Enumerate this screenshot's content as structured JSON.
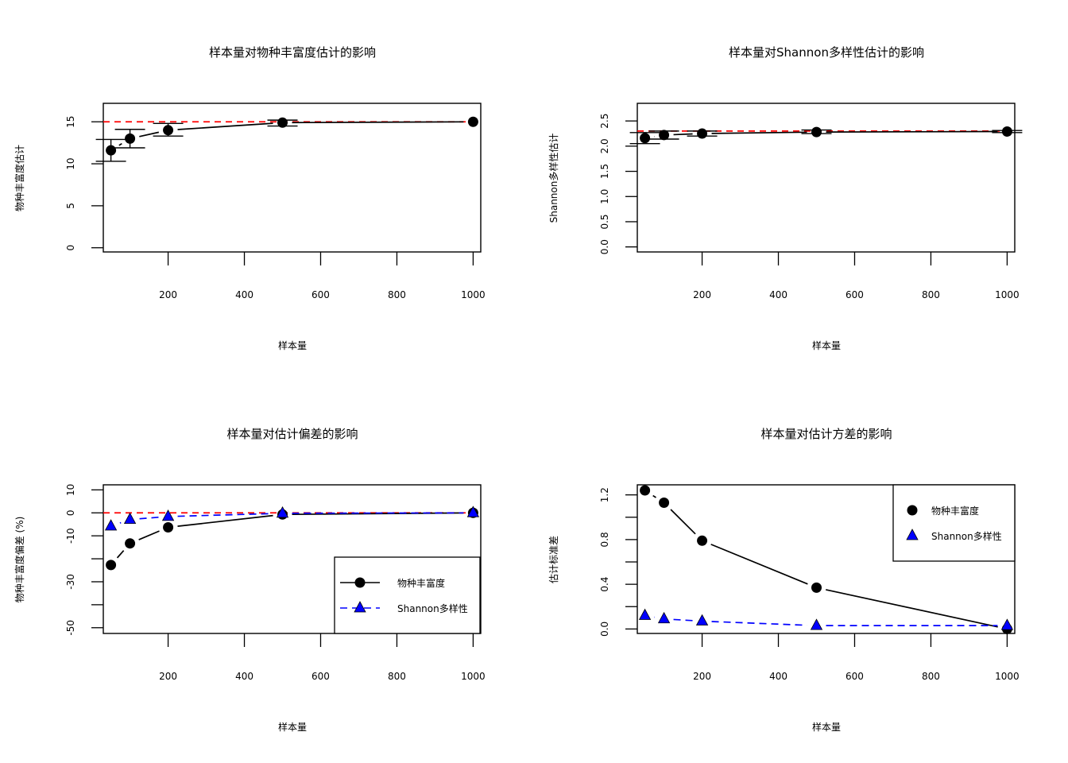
{
  "colors": {
    "main_line": "#000000",
    "shannon": "#0000FF",
    "reference": "#FF0000",
    "axis": "#000000"
  },
  "chart_data": [
    {
      "type": "line",
      "title": "样本量对物种丰富度估计的影响",
      "xlabel": "样本量",
      "ylabel": "物种丰富度估计",
      "xlim": [
        30,
        1020
      ],
      "ylim": [
        -0.5,
        17.2
      ],
      "xticks": [
        200,
        400,
        600,
        800,
        1000
      ],
      "xtick_labels": [
        "200",
        "400",
        "600",
        "800",
        "1000"
      ],
      "yticks": [
        0,
        5,
        10,
        15
      ],
      "ytick_labels": [
        "0",
        "5",
        "10",
        "15"
      ],
      "reference_line": 15,
      "series": [
        {
          "name": "物种丰富度",
          "x": [
            50,
            100,
            200,
            500,
            1000
          ],
          "y": [
            11.6,
            13.0,
            14.0,
            14.9,
            15.0
          ],
          "error_low": [
            10.3,
            11.9,
            13.3,
            14.5,
            15.0
          ],
          "error_high": [
            12.9,
            14.1,
            14.8,
            15.2,
            15.0
          ]
        }
      ]
    },
    {
      "type": "line",
      "title": "样本量对Shannon多样性估计的影响",
      "xlabel": "样本量",
      "ylabel": "Shannon多样性估计",
      "xlim": [
        30,
        1020
      ],
      "ylim": [
        -0.1,
        2.85
      ],
      "xticks": [
        200,
        400,
        600,
        800,
        1000
      ],
      "xtick_labels": [
        "200",
        "400",
        "600",
        "800",
        "1000"
      ],
      "yticks": [
        0.0,
        0.5,
        1.0,
        1.5,
        2.0,
        2.5
      ],
      "ytick_labels": [
        "0.0",
        "0.5",
        "1.0",
        "1.5",
        "2.0",
        "2.5"
      ],
      "reference_line": 2.3,
      "series": [
        {
          "name": "Shannon多样性",
          "x": [
            50,
            100,
            200,
            500,
            1000
          ],
          "y": [
            2.16,
            2.22,
            2.25,
            2.28,
            2.29
          ],
          "error_low": [
            2.05,
            2.14,
            2.2,
            2.25,
            2.27
          ],
          "error_high": [
            2.27,
            2.3,
            2.3,
            2.32,
            2.31
          ]
        }
      ]
    },
    {
      "type": "line",
      "title": "样本量对估计偏差的影响",
      "xlabel": "样本量",
      "ylabel": "物种丰富度偏差 (%)",
      "xlim": [
        30,
        1020
      ],
      "ylim": [
        -52.5,
        12.2
      ],
      "xticks": [
        200,
        400,
        600,
        800,
        1000
      ],
      "xtick_labels": [
        "200",
        "400",
        "600",
        "800",
        "1000"
      ],
      "yticks": [
        10,
        0,
        -10,
        -20,
        -30,
        -40,
        -50
      ],
      "ytick_labels": [
        "10",
        "0",
        "-10",
        "",
        "-30",
        "",
        "-50"
      ],
      "reference_line": 0,
      "legend": {
        "position": "bottom-right",
        "entries": [
          "物种丰富度",
          "Shannon多样性"
        ]
      },
      "series": [
        {
          "name": "物种丰富度",
          "x": [
            50,
            100,
            200,
            500,
            1000
          ],
          "y": [
            -22.7,
            -13.3,
            -6.3,
            -0.7,
            0.0
          ]
        },
        {
          "name": "Shannon多样性",
          "x": [
            50,
            100,
            200,
            500,
            1000
          ],
          "y": [
            -5.8,
            -2.9,
            -1.6,
            -0.2,
            0.0
          ]
        }
      ]
    },
    {
      "type": "line",
      "title": "样本量对估计方差的影响",
      "xlabel": "样本量",
      "ylabel": "估计标准差",
      "xlim": [
        30,
        1020
      ],
      "ylim": [
        -0.04,
        1.29
      ],
      "xticks": [
        200,
        400,
        600,
        800,
        1000
      ],
      "xtick_labels": [
        "200",
        "400",
        "600",
        "800",
        "1000"
      ],
      "yticks": [
        0.0,
        0.2,
        0.4,
        0.6,
        0.8,
        1.0,
        1.2
      ],
      "ytick_labels": [
        "0.0",
        "",
        "0.4",
        "",
        "0.8",
        "",
        "1.2"
      ],
      "legend": {
        "position": "top-right",
        "entries": [
          "物种丰富度",
          "Shannon多样性"
        ]
      },
      "series": [
        {
          "name": "物种丰富度",
          "x": [
            50,
            100,
            200,
            500,
            1000
          ],
          "y": [
            1.24,
            1.13,
            0.79,
            0.37,
            0.0
          ]
        },
        {
          "name": "Shannon多样性",
          "x": [
            50,
            100,
            200,
            500,
            1000
          ],
          "y": [
            0.12,
            0.09,
            0.07,
            0.03,
            0.03
          ]
        }
      ]
    }
  ]
}
